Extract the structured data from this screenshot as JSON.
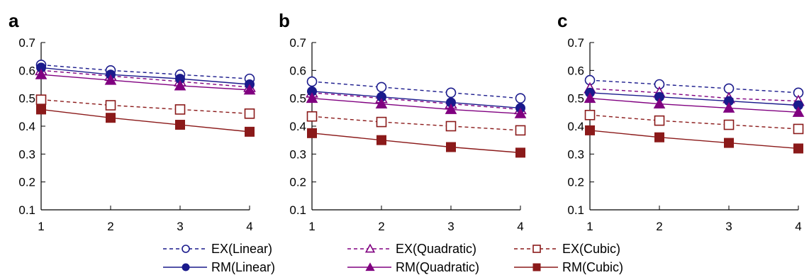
{
  "chart_data": [
    {
      "type": "line",
      "panel": "a",
      "x": [
        1,
        2,
        3,
        4
      ],
      "ylim": [
        0.1,
        0.7
      ],
      "yticks": [
        "0.1",
        "0.2",
        "0.3",
        "0.4",
        "0.5",
        "0.6",
        "0.7"
      ],
      "xticks": [
        "1",
        "2",
        "3",
        "4"
      ],
      "grid": false,
      "series": [
        {
          "name": "EX(Linear)",
          "values": [
            0.62,
            0.6,
            0.585,
            0.57
          ]
        },
        {
          "name": "EX(Quadratic)",
          "values": [
            0.6,
            0.58,
            0.56,
            0.54
          ]
        },
        {
          "name": "EX(Cubic)",
          "values": [
            0.495,
            0.475,
            0.46,
            0.445
          ]
        },
        {
          "name": "RM(Linear)",
          "values": [
            0.61,
            0.585,
            0.57,
            0.55
          ]
        },
        {
          "name": "RM(Quadratic)",
          "values": [
            0.585,
            0.565,
            0.545,
            0.53
          ]
        },
        {
          "name": "RM(Cubic)",
          "values": [
            0.46,
            0.43,
            0.405,
            0.38
          ]
        }
      ]
    },
    {
      "type": "line",
      "panel": "b",
      "x": [
        1,
        2,
        3,
        4
      ],
      "ylim": [
        0.1,
        0.7
      ],
      "yticks": [
        "0.1",
        "0.2",
        "0.3",
        "0.4",
        "0.5",
        "0.6",
        "0.7"
      ],
      "xticks": [
        "1",
        "2",
        "3",
        "4"
      ],
      "grid": false,
      "series": [
        {
          "name": "EX(Linear)",
          "values": [
            0.56,
            0.54,
            0.52,
            0.5
          ]
        },
        {
          "name": "EX(Quadratic)",
          "values": [
            0.52,
            0.5,
            0.48,
            0.46
          ]
        },
        {
          "name": "EX(Cubic)",
          "values": [
            0.435,
            0.415,
            0.4,
            0.385
          ]
        },
        {
          "name": "RM(Linear)",
          "values": [
            0.525,
            0.505,
            0.485,
            0.465
          ]
        },
        {
          "name": "RM(Quadratic)",
          "values": [
            0.5,
            0.48,
            0.46,
            0.445
          ]
        },
        {
          "name": "RM(Cubic)",
          "values": [
            0.375,
            0.35,
            0.325,
            0.305
          ]
        }
      ]
    },
    {
      "type": "line",
      "panel": "c",
      "x": [
        1,
        2,
        3,
        4
      ],
      "ylim": [
        0.1,
        0.7
      ],
      "yticks": [
        "0.1",
        "0.2",
        "0.3",
        "0.4",
        "0.5",
        "0.6",
        "0.7"
      ],
      "xticks": [
        "1",
        "2",
        "3",
        "4"
      ],
      "grid": false,
      "series": [
        {
          "name": "EX(Linear)",
          "values": [
            0.565,
            0.55,
            0.535,
            0.52
          ]
        },
        {
          "name": "EX(Quadratic)",
          "values": [
            0.535,
            0.52,
            0.5,
            0.49
          ]
        },
        {
          "name": "EX(Cubic)",
          "values": [
            0.44,
            0.42,
            0.405,
            0.39
          ]
        },
        {
          "name": "RM(Linear)",
          "values": [
            0.52,
            0.505,
            0.49,
            0.475
          ]
        },
        {
          "name": "RM(Quadratic)",
          "values": [
            0.5,
            0.48,
            0.465,
            0.45
          ]
        },
        {
          "name": "RM(Cubic)",
          "values": [
            0.385,
            0.36,
            0.34,
            0.32
          ]
        }
      ]
    }
  ],
  "series_style": [
    {
      "name": "EX(Linear)",
      "color": "#1a1a8c",
      "dashed": true,
      "marker": "circle",
      "filled": false
    },
    {
      "name": "EX(Quadratic)",
      "color": "#800080",
      "dashed": true,
      "marker": "triangle",
      "filled": false
    },
    {
      "name": "EX(Cubic)",
      "color": "#8b1a1a",
      "dashed": true,
      "marker": "square",
      "filled": false
    },
    {
      "name": "RM(Linear)",
      "color": "#1a1a8c",
      "dashed": false,
      "marker": "circle",
      "filled": true
    },
    {
      "name": "RM(Quadratic)",
      "color": "#800080",
      "dashed": false,
      "marker": "triangle",
      "filled": true
    },
    {
      "name": "RM(Cubic)",
      "color": "#8b1a1a",
      "dashed": false,
      "marker": "square",
      "filled": true
    }
  ],
  "legend": {
    "placement": "bottom",
    "rows": [
      [
        "EX(Linear)",
        "EX(Quadratic)",
        "EX(Cubic)"
      ],
      [
        "RM(Linear)",
        "RM(Quadratic)",
        "RM(Cubic)"
      ]
    ]
  }
}
